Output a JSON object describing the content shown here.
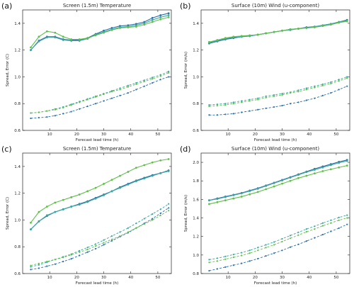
{
  "colors": {
    "dark_blue": "#2a6fa8",
    "teal": "#3aa6a0",
    "green": "#5fbf4a"
  },
  "chart_data": [
    {
      "type": "line",
      "panel": "(a)",
      "title": "Screen (1.5m) Temperature",
      "xlabel": "Forecast lead time (h)",
      "ylabel": "Spread, Error (C)",
      "xlim": [
        0,
        55
      ],
      "ylim": [
        0.6,
        1.5
      ],
      "xticks": [
        10,
        20,
        30,
        40,
        50
      ],
      "yticks": [
        0.6,
        0.8,
        1.0,
        1.2,
        1.4
      ],
      "ytick_labels": [
        "0.6",
        "0.8",
        "1.0",
        "1.2",
        "1.4"
      ],
      "grid": false,
      "x": [
        3,
        6,
        9,
        12,
        15,
        18,
        21,
        24,
        27,
        30,
        33,
        36,
        39,
        42,
        45,
        48,
        51,
        54
      ],
      "series": [
        {
          "style": "solid",
          "color": "dark_blue",
          "values": [
            1.2,
            1.27,
            1.3,
            1.3,
            1.28,
            1.275,
            1.275,
            1.29,
            1.32,
            1.345,
            1.365,
            1.38,
            1.385,
            1.395,
            1.41,
            1.44,
            1.46,
            1.475
          ]
        },
        {
          "style": "solid",
          "color": "teal",
          "values": [
            1.2,
            1.265,
            1.295,
            1.295,
            1.275,
            1.27,
            1.27,
            1.285,
            1.315,
            1.335,
            1.355,
            1.37,
            1.375,
            1.385,
            1.4,
            1.425,
            1.445,
            1.46
          ]
        },
        {
          "style": "solid",
          "color": "green",
          "values": [
            1.22,
            1.3,
            1.34,
            1.33,
            1.3,
            1.28,
            1.28,
            1.29,
            1.31,
            1.33,
            1.35,
            1.365,
            1.37,
            1.375,
            1.39,
            1.41,
            1.43,
            1.445
          ]
        },
        {
          "style": "dashed",
          "color": "dark_blue",
          "values": [
            0.69,
            0.695,
            0.7,
            0.71,
            0.725,
            0.74,
            0.76,
            0.78,
            0.8,
            0.82,
            0.84,
            0.86,
            0.88,
            0.905,
            0.93,
            0.955,
            0.98,
            1.0
          ]
        },
        {
          "style": "dashed",
          "color": "teal",
          "values": [
            0.73,
            0.735,
            0.745,
            0.76,
            0.775,
            0.795,
            0.815,
            0.835,
            0.855,
            0.875,
            0.895,
            0.915,
            0.935,
            0.955,
            0.975,
            0.995,
            1.015,
            1.04
          ]
        },
        {
          "style": "dashed",
          "color": "green",
          "values": [
            0.73,
            0.735,
            0.745,
            0.755,
            0.77,
            0.79,
            0.81,
            0.83,
            0.85,
            0.87,
            0.89,
            0.905,
            0.925,
            0.945,
            0.965,
            0.985,
            1.005,
            1.03
          ]
        }
      ]
    },
    {
      "type": "line",
      "panel": "(b)",
      "title": "Surface (10m) Wind (u-component)",
      "xlabel": "Forecast lead time (h)",
      "ylabel": "Spread, Error (m/s)",
      "xlim": [
        0,
        55
      ],
      "ylim": [
        0.6,
        1.5
      ],
      "xticks": [
        10,
        20,
        30,
        40,
        50
      ],
      "yticks": [
        0.6,
        0.8,
        1.0,
        1.2,
        1.4
      ],
      "ytick_labels": [
        "0.6",
        "0.8",
        "1.0",
        "1.2",
        "1.4"
      ],
      "grid": false,
      "x": [
        3,
        6,
        9,
        12,
        15,
        18,
        21,
        24,
        27,
        30,
        33,
        36,
        39,
        42,
        45,
        48,
        51,
        54
      ],
      "series": [
        {
          "style": "solid",
          "color": "dark_blue",
          "values": [
            1.25,
            1.265,
            1.28,
            1.29,
            1.3,
            1.305,
            1.315,
            1.325,
            1.335,
            1.345,
            1.355,
            1.36,
            1.37,
            1.375,
            1.385,
            1.395,
            1.41,
            1.425
          ]
        },
        {
          "style": "solid",
          "color": "teal",
          "values": [
            1.255,
            1.27,
            1.285,
            1.295,
            1.3,
            1.305,
            1.315,
            1.325,
            1.335,
            1.345,
            1.35,
            1.36,
            1.365,
            1.375,
            1.385,
            1.395,
            1.41,
            1.42
          ]
        },
        {
          "style": "solid",
          "color": "green",
          "values": [
            1.26,
            1.275,
            1.29,
            1.3,
            1.305,
            1.31,
            1.315,
            1.325,
            1.335,
            1.345,
            1.355,
            1.36,
            1.365,
            1.37,
            1.38,
            1.39,
            1.405,
            1.415
          ]
        },
        {
          "style": "dashed",
          "color": "dark_blue",
          "values": [
            0.715,
            0.715,
            0.72,
            0.725,
            0.735,
            0.745,
            0.755,
            0.765,
            0.775,
            0.785,
            0.8,
            0.81,
            0.825,
            0.84,
            0.86,
            0.88,
            0.905,
            0.93
          ]
        },
        {
          "style": "dashed",
          "color": "teal",
          "values": [
            0.79,
            0.795,
            0.8,
            0.81,
            0.82,
            0.83,
            0.84,
            0.855,
            0.865,
            0.875,
            0.885,
            0.9,
            0.915,
            0.93,
            0.945,
            0.96,
            0.98,
            1.0
          ]
        },
        {
          "style": "dashed",
          "color": "green",
          "values": [
            0.78,
            0.785,
            0.79,
            0.8,
            0.81,
            0.82,
            0.83,
            0.845,
            0.855,
            0.865,
            0.88,
            0.89,
            0.905,
            0.92,
            0.935,
            0.95,
            0.97,
            0.99
          ]
        }
      ]
    },
    {
      "type": "line",
      "panel": "(c)",
      "title": "Screen (1.5m) Temperature",
      "xlabel": "Forecast lead time (h)",
      "ylabel": "Spread, Error (C)",
      "xlim": [
        0,
        55
      ],
      "ylim": [
        0.6,
        1.5
      ],
      "xticks": [
        10,
        20,
        30,
        40,
        50
      ],
      "yticks": [
        0.6,
        0.8,
        1.0,
        1.2,
        1.4
      ],
      "ytick_labels": [
        "0.6",
        "0.8",
        "1.0",
        "1.2",
        "1.4"
      ],
      "grid": false,
      "x": [
        3,
        6,
        9,
        12,
        15,
        18,
        21,
        24,
        27,
        30,
        33,
        36,
        39,
        42,
        45,
        48,
        51,
        54
      ],
      "series": [
        {
          "style": "solid",
          "color": "dark_blue",
          "values": [
            0.93,
            0.99,
            1.03,
            1.06,
            1.08,
            1.1,
            1.12,
            1.14,
            1.165,
            1.19,
            1.215,
            1.245,
            1.27,
            1.295,
            1.315,
            1.335,
            1.35,
            1.37
          ]
        },
        {
          "style": "solid",
          "color": "teal",
          "values": [
            0.93,
            0.99,
            1.035,
            1.06,
            1.08,
            1.1,
            1.115,
            1.135,
            1.16,
            1.185,
            1.215,
            1.24,
            1.265,
            1.29,
            1.31,
            1.33,
            1.35,
            1.365
          ]
        },
        {
          "style": "solid",
          "color": "green",
          "values": [
            0.98,
            1.06,
            1.1,
            1.13,
            1.15,
            1.17,
            1.19,
            1.215,
            1.24,
            1.27,
            1.3,
            1.33,
            1.36,
            1.39,
            1.41,
            1.43,
            1.445,
            1.455
          ]
        },
        {
          "style": "dashed",
          "color": "dark_blue",
          "values": [
            0.63,
            0.64,
            0.655,
            0.67,
            0.69,
            0.71,
            0.735,
            0.76,
            0.785,
            0.815,
            0.845,
            0.875,
            0.905,
            0.94,
            0.975,
            1.01,
            1.05,
            1.09
          ]
        },
        {
          "style": "dashed",
          "color": "teal",
          "values": [
            0.65,
            0.665,
            0.685,
            0.705,
            0.725,
            0.745,
            0.77,
            0.795,
            0.82,
            0.85,
            0.88,
            0.91,
            0.94,
            0.975,
            1.01,
            1.045,
            1.08,
            1.12
          ]
        },
        {
          "style": "dashed",
          "color": "green",
          "values": [
            0.66,
            0.675,
            0.69,
            0.705,
            0.72,
            0.74,
            0.76,
            0.78,
            0.805,
            0.83,
            0.855,
            0.88,
            0.91,
            0.94,
            0.97,
            1.0,
            1.035,
            1.07
          ]
        }
      ]
    },
    {
      "type": "line",
      "panel": "(d)",
      "title": "Surface (10m) Wind (u-component)",
      "xlabel": "Forecast lead time (h)",
      "ylabel": "Spread, Error (m/s)",
      "xlim": [
        0,
        55
      ],
      "ylim": [
        0.8,
        2.1
      ],
      "xticks": [
        10,
        20,
        30,
        40,
        50
      ],
      "yticks": [
        0.8,
        1.0,
        1.2,
        1.4,
        1.6,
        1.8,
        2.0
      ],
      "ytick_labels": [
        "0.8",
        "1.0",
        "1.2",
        "1.4",
        "1.6",
        "1.8",
        "2.0"
      ],
      "grid": false,
      "x": [
        3,
        6,
        9,
        12,
        15,
        18,
        21,
        24,
        27,
        30,
        33,
        36,
        39,
        42,
        45,
        48,
        51,
        54
      ],
      "series": [
        {
          "style": "solid",
          "color": "dark_blue",
          "values": [
            1.59,
            1.61,
            1.63,
            1.65,
            1.67,
            1.695,
            1.72,
            1.75,
            1.78,
            1.81,
            1.84,
            1.87,
            1.9,
            1.93,
            1.955,
            1.98,
            2.005,
            2.025
          ]
        },
        {
          "style": "solid",
          "color": "teal",
          "values": [
            1.59,
            1.605,
            1.625,
            1.645,
            1.665,
            1.69,
            1.715,
            1.745,
            1.775,
            1.805,
            1.835,
            1.865,
            1.895,
            1.92,
            1.945,
            1.97,
            1.995,
            2.015
          ]
        },
        {
          "style": "solid",
          "color": "green",
          "values": [
            1.55,
            1.57,
            1.59,
            1.61,
            1.63,
            1.655,
            1.68,
            1.71,
            1.74,
            1.77,
            1.8,
            1.83,
            1.855,
            1.88,
            1.905,
            1.925,
            1.945,
            1.965
          ]
        },
        {
          "style": "dashed",
          "color": "dark_blue",
          "values": [
            0.83,
            0.85,
            0.87,
            0.89,
            0.91,
            0.935,
            0.96,
            0.99,
            1.02,
            1.05,
            1.085,
            1.115,
            1.15,
            1.185,
            1.22,
            1.255,
            1.29,
            1.33
          ]
        },
        {
          "style": "dashed",
          "color": "teal",
          "values": [
            0.95,
            0.965,
            0.985,
            1.005,
            1.025,
            1.05,
            1.08,
            1.11,
            1.14,
            1.175,
            1.21,
            1.245,
            1.28,
            1.31,
            1.345,
            1.375,
            1.405,
            1.43
          ]
        },
        {
          "style": "dashed",
          "color": "green",
          "values": [
            0.92,
            0.935,
            0.955,
            0.975,
            0.995,
            1.02,
            1.05,
            1.08,
            1.11,
            1.145,
            1.18,
            1.215,
            1.25,
            1.28,
            1.315,
            1.345,
            1.375,
            1.4
          ]
        }
      ]
    }
  ]
}
